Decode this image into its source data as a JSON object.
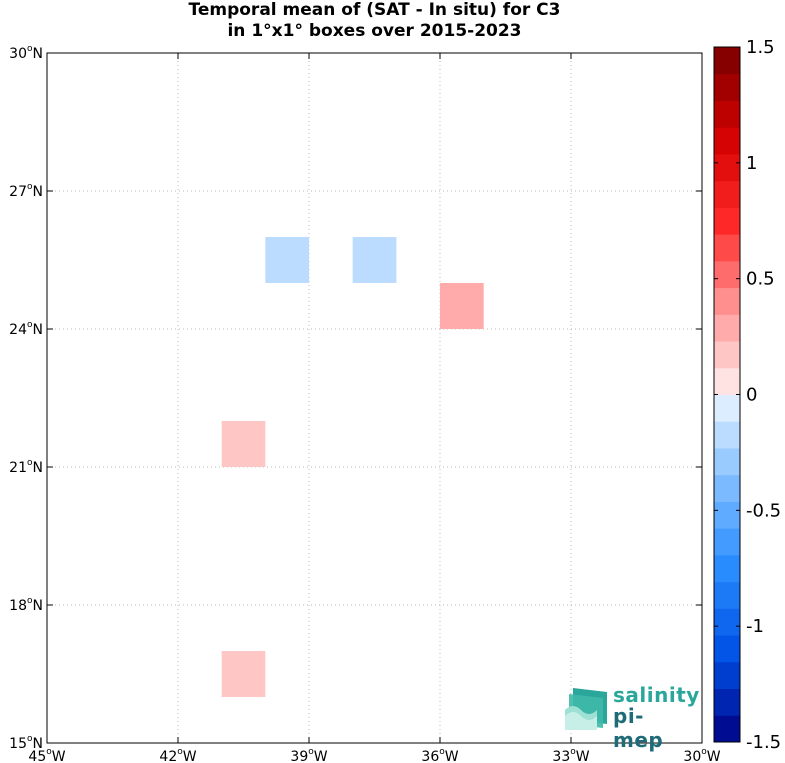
{
  "title": {
    "line1": "Temporal mean of (SAT - In situ) for C3",
    "line2": "in 1°x1° boxes over 2015-2023"
  },
  "map": {
    "lon_range": [
      -45,
      -30
    ],
    "lat_range": [
      15,
      30
    ],
    "grid": true,
    "lon_ticks": [
      {
        "value": -45,
        "deg": "45",
        "hem": "W"
      },
      {
        "value": -42,
        "deg": "42",
        "hem": "W"
      },
      {
        "value": -39,
        "deg": "39",
        "hem": "W"
      },
      {
        "value": -36,
        "deg": "36",
        "hem": "W"
      },
      {
        "value": -33,
        "deg": "33",
        "hem": "W"
      },
      {
        "value": -30,
        "deg": "30",
        "hem": "W"
      }
    ],
    "lat_ticks": [
      {
        "value": 30,
        "deg": "30",
        "hem": "N"
      },
      {
        "value": 27,
        "deg": "27",
        "hem": "N"
      },
      {
        "value": 24,
        "deg": "24",
        "hem": "N"
      },
      {
        "value": 21,
        "deg": "21",
        "hem": "N"
      },
      {
        "value": 18,
        "deg": "18",
        "hem": "N"
      },
      {
        "value": 15,
        "deg": "15",
        "hem": "N"
      }
    ],
    "deg_symbol": "o"
  },
  "chart_data": {
    "type": "heatmap",
    "title": "Temporal mean of (SAT - In situ) for C3 in 1°x1° boxes over 2015-2023",
    "cells": [
      {
        "lon": [
          -40,
          -39
        ],
        "lat": [
          25,
          26
        ],
        "value": -0.15
      },
      {
        "lon": [
          -38,
          -37
        ],
        "lat": [
          25,
          26
        ],
        "value": -0.15
      },
      {
        "lon": [
          -36,
          -35
        ],
        "lat": [
          24,
          25
        ],
        "value": 0.3
      },
      {
        "lon": [
          -41,
          -40
        ],
        "lat": [
          21,
          22
        ],
        "value": 0.15
      },
      {
        "lon": [
          -41,
          -40
        ],
        "lat": [
          16,
          17
        ],
        "value": 0.15
      }
    ],
    "colorbar": {
      "range": [
        -1.5,
        1.5
      ],
      "levels": 26,
      "ticks": [
        {
          "value": 1.5,
          "label": "1.5"
        },
        {
          "value": 1,
          "label": "1"
        },
        {
          "value": 0.5,
          "label": "0.5"
        },
        {
          "value": 0,
          "label": "0"
        },
        {
          "value": -0.5,
          "label": "-0.5"
        },
        {
          "value": -1,
          "label": "-1"
        },
        {
          "value": -1.5,
          "label": "-1.5"
        }
      ]
    }
  },
  "logo": {
    "line1": "salinity",
    "line2": "pi-mep",
    "icon": "salinity-waves-icon"
  }
}
